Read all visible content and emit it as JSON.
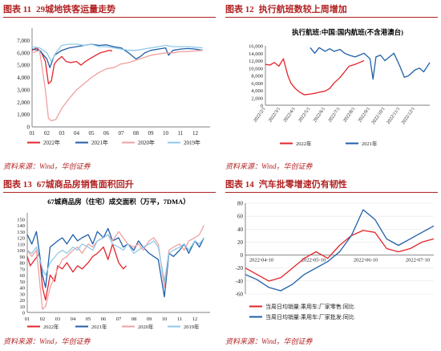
{
  "panels": [
    {
      "id": "p1",
      "label": "图表 11",
      "title": "29城地铁客运量走势",
      "source": "资料来源：Wind，华创证券"
    },
    {
      "id": "p2",
      "label": "图表 12",
      "title": "执行航班数较上周增加",
      "source": "资料来源：Wind，华创证券"
    },
    {
      "id": "p3",
      "label": "图表 13",
      "title": "67城商品房销售面积回升",
      "source": "资料来源：Wind，华创证券"
    },
    {
      "id": "p4",
      "label": "图表 14",
      "title": "汽车批零增速仍有韧性",
      "source": "资料来源：Wind，华创证券"
    }
  ],
  "colors": {
    "red": "#e3242b",
    "blue": "#1f5fa8",
    "pink": "#f0a0a0",
    "lightblue": "#8fc8e8",
    "accent": "#b22222"
  },
  "chart_data": [
    {
      "type": "line",
      "title": "",
      "ylim": [
        0,
        8000
      ],
      "yticks": [
        0,
        1000,
        2000,
        3000,
        4000,
        5000,
        6000,
        7000
      ],
      "yticklabels": [
        "0",
        "1,000",
        "2,000",
        "3,000",
        "4,000",
        "5,000",
        "6,000",
        "7,000"
      ],
      "xlim": [
        1,
        13
      ],
      "xticks": [
        1,
        2,
        3,
        4,
        5,
        6,
        7,
        8,
        9,
        10,
        11,
        12
      ],
      "xticklabels": [
        "01",
        "02",
        "03",
        "04",
        "05",
        "06",
        "07",
        "08",
        "09",
        "10",
        "11",
        "12"
      ],
      "series": [
        {
          "name": "2022年",
          "color": "#e3242b",
          "x": [
            1,
            1.3,
            1.6,
            1.9,
            2.1,
            2.3,
            2.5,
            2.7,
            3,
            3.3,
            3.6,
            4,
            4.3,
            4.6,
            5,
            5.3,
            5.6,
            5.9,
            6.2,
            6.4
          ],
          "y": [
            6200,
            6400,
            6100,
            5300,
            3500,
            3700,
            5100,
            5400,
            5700,
            5300,
            5200,
            5300,
            5000,
            5300,
            5600,
            5800,
            6000,
            6100,
            6200,
            6150
          ]
        },
        {
          "name": "2021年",
          "color": "#1f5fa8",
          "x": [
            1,
            1.5,
            2,
            2.2,
            2.5,
            3,
            3.5,
            4,
            4.5,
            5,
            5.5,
            6,
            6.5,
            7,
            7.5,
            8,
            8.3,
            8.6,
            9,
            9.5,
            10,
            10.2,
            10.5,
            11,
            11.5,
            12,
            12.5
          ],
          "y": [
            6300,
            6200,
            5500,
            4800,
            5800,
            6200,
            6400,
            6500,
            6600,
            6700,
            6600,
            6650,
            6500,
            6400,
            6000,
            5500,
            5700,
            6000,
            6200,
            6300,
            6400,
            5800,
            6200,
            6300,
            6350,
            6300,
            6200
          ]
        },
        {
          "name": "2020年",
          "color": "#f0a0a0",
          "x": [
            1,
            1.5,
            1.9,
            2.1,
            2.3,
            2.6,
            3,
            3.5,
            4,
            4.5,
            5,
            5.5,
            6,
            6.5,
            7,
            7.5,
            8,
            8.5,
            9,
            9.5,
            10,
            10.5,
            11,
            11.5,
            12,
            12.5
          ],
          "y": [
            6000,
            6200,
            3000,
            700,
            500,
            600,
            1500,
            2300,
            3000,
            3500,
            4000,
            4400,
            4700,
            4800,
            5100,
            5200,
            5400,
            5600,
            5800,
            5900,
            6000,
            6000,
            6100,
            6100,
            6150,
            6200
          ]
        },
        {
          "name": "2019年",
          "color": "#8fc8e8",
          "x": [
            1,
            1.5,
            2,
            2.3,
            2.6,
            3,
            3.5,
            4,
            4.5,
            5,
            5.5,
            6,
            6.5,
            7,
            7.5,
            8,
            8.5,
            9,
            9.5,
            10,
            10.5,
            11,
            11.5,
            12,
            12.5
          ],
          "y": [
            6500,
            6400,
            6000,
            5300,
            6000,
            6600,
            6700,
            6700,
            6600,
            6700,
            6500,
            6500,
            6400,
            6300,
            6200,
            6200,
            6300,
            6400,
            6500,
            6600,
            6500,
            6500,
            6500,
            6450,
            6400
          ]
        }
      ],
      "legend": {
        "placement": "bottom"
      }
    },
    {
      "type": "line",
      "title": "执行航班:中国:国内航班(不含港澳台)",
      "ylim": [
        0,
        16000
      ],
      "yticks": [
        0,
        2000,
        4000,
        6000,
        8000,
        10000,
        12000,
        14000,
        16000
      ],
      "yticklabels": [
        "0",
        "2,000",
        "4,000",
        "6,000",
        "8,000",
        "10,000",
        "12,000",
        "14,000",
        "16,000"
      ],
      "xticklabels": [
        "2022/2/1",
        "2022/3/1",
        "2022/4/1",
        "2022/5/1",
        "2022/6/1",
        "2022/7/1",
        "2022/8/1",
        "2022/9/1",
        "2022/10/1",
        "2022/11/1",
        "2022/12/1"
      ],
      "series": [
        {
          "name": "2022年",
          "color": "#e3242b",
          "x": [
            0,
            0.3,
            0.6,
            0.9,
            1.2,
            1.5,
            1.7,
            2,
            2.3,
            2.6,
            3,
            3.3,
            3.6,
            4,
            4.3,
            4.6,
            5,
            5.3,
            5.6,
            6,
            6.3,
            6.6
          ],
          "y": [
            11000,
            10800,
            11500,
            10500,
            12500,
            8000,
            6000,
            4500,
            3500,
            2800,
            3000,
            3200,
            3500,
            3800,
            4500,
            6000,
            7500,
            9000,
            10500,
            11000,
            11500,
            12000
          ]
        },
        {
          "name": "2021年",
          "color": "#1f5fa8",
          "x": [
            3,
            3.3,
            3.6,
            4,
            4.3,
            4.6,
            5,
            5.3,
            5.6,
            6,
            6.3,
            6.6,
            7,
            7.2,
            7.4,
            7.7,
            8,
            8.3,
            8.6,
            9,
            9.3,
            9.6,
            10,
            10.3,
            10.6,
            11
          ],
          "y": [
            15500,
            14000,
            15500,
            14500,
            15200,
            14500,
            15000,
            14000,
            13500,
            13000,
            13500,
            14000,
            12500,
            7000,
            13000,
            13500,
            12000,
            13000,
            14000,
            10500,
            7500,
            8000,
            9500,
            10000,
            9000,
            11500
          ]
        }
      ],
      "legend": {
        "placement": "bottom"
      }
    },
    {
      "type": "line",
      "title": "67城商品房（住宅）成交面积（万平，7DMA）",
      "ylim": [
        0,
        160
      ],
      "yticks": [
        0,
        10,
        20,
        30,
        40,
        50,
        60,
        70,
        80,
        90,
        100,
        110,
        120,
        130,
        140,
        150
      ],
      "yticklabels": [
        "0",
        "10",
        "20",
        "30",
        "40",
        "50",
        "60",
        "70",
        "80",
        "90",
        "100",
        "110",
        "120",
        "130",
        "140",
        "150"
      ],
      "xticks": [
        1,
        2,
        3,
        4,
        5,
        6,
        7,
        8,
        9,
        10,
        11,
        12
      ],
      "xticklabels": [
        "01",
        "02",
        "03",
        "04",
        "05",
        "06",
        "07",
        "08",
        "09",
        "10",
        "11",
        "12"
      ],
      "series": [
        {
          "name": "2022年",
          "color": "#e3242b",
          "x": [
            1,
            1.2,
            1.5,
            1.8,
            2,
            2.2,
            2.5,
            2.8,
            3,
            3.3,
            3.6,
            4,
            4.3,
            4.6,
            5,
            5.3,
            5.6,
            6,
            6.3,
            6.6,
            7,
            7.3,
            7.5
          ],
          "y": [
            90,
            75,
            85,
            95,
            40,
            20,
            60,
            50,
            75,
            70,
            80,
            65,
            75,
            70,
            80,
            90,
            95,
            105,
            85,
            110,
            80,
            70,
            75
          ]
        },
        {
          "name": "2021年",
          "color": "#1f5fa8",
          "x": [
            1,
            1.3,
            1.6,
            2,
            2.2,
            2.5,
            3,
            3.3,
            3.6,
            4,
            4.3,
            4.6,
            5,
            5.3,
            5.6,
            6,
            6.3,
            6.6,
            7,
            7.3,
            7.6,
            8,
            8.3,
            8.6,
            9,
            9.3,
            9.6,
            10,
            10.3,
            10.6,
            11,
            11.3,
            11.6,
            12,
            12.3,
            12.6
          ],
          "y": [
            125,
            110,
            130,
            60,
            40,
            105,
            115,
            120,
            110,
            125,
            115,
            120,
            125,
            110,
            130,
            120,
            135,
            115,
            120,
            105,
            110,
            100,
            115,
            105,
            95,
            90,
            85,
            25,
            95,
            90,
            100,
            110,
            95,
            115,
            105,
            120
          ]
        },
        {
          "name": "2020年",
          "color": "#f0a0a0",
          "x": [
            1,
            1.3,
            1.6,
            2,
            2.2,
            2.5,
            3,
            3.3,
            3.6,
            4,
            4.3,
            4.6,
            5,
            5.3,
            5.6,
            6,
            6.3,
            6.6,
            7,
            7.3,
            7.6,
            8,
            8.3,
            8.6,
            9,
            9.3,
            9.6,
            10,
            10.3,
            10.6,
            11,
            11.3,
            11.6,
            12,
            12.3,
            12.6
          ],
          "y": [
            100,
            90,
            100,
            5,
            10,
            40,
            70,
            85,
            90,
            100,
            105,
            95,
            110,
            105,
            115,
            120,
            125,
            115,
            130,
            120,
            110,
            105,
            110,
            100,
            115,
            120,
            110,
            40,
            100,
            105,
            110,
            100,
            115,
            120,
            125,
            140
          ]
        },
        {
          "name": "2019年",
          "color": "#8fc8e8",
          "x": [
            1,
            1.3,
            1.6,
            2,
            2.2,
            2.5,
            3,
            3.3,
            3.6,
            4,
            4.3,
            4.6,
            5,
            5.3,
            5.6,
            6,
            6.3,
            6.6,
            7,
            7.3,
            7.6,
            8,
            8.3,
            8.6,
            9,
            9.3,
            9.6,
            10,
            10.3,
            10.6,
            11,
            11.3,
            11.6,
            12,
            12.3,
            12.6
          ],
          "y": [
            100,
            95,
            105,
            70,
            60,
            80,
            95,
            100,
            95,
            105,
            100,
            110,
            105,
            100,
            115,
            120,
            125,
            110,
            105,
            100,
            110,
            95,
            100,
            105,
            110,
            115,
            105,
            50,
            95,
            100,
            105,
            110,
            100,
            115,
            110,
            120
          ]
        }
      ],
      "legend": {
        "placement": "bottom"
      }
    },
    {
      "type": "line",
      "title": "",
      "ylim": [
        -60,
        80
      ],
      "yticks": [
        -60,
        -40,
        -20,
        0,
        20,
        40,
        60,
        80
      ],
      "yticklabels": [
        "-60",
        "-40",
        "-20",
        "0",
        "20",
        "40",
        "60",
        "80"
      ],
      "xticklabels": [
        "2022-04-10",
        "2022-05-10",
        "2022-06-10",
        "2022-07-10"
      ],
      "series": [
        {
          "name": "当周日均销量:乘用车:厂家零售:同比",
          "color": "#e3242b",
          "x": [
            0,
            0.2,
            0.4,
            0.6,
            0.8,
            1.0,
            1.2,
            1.4,
            1.6,
            1.8,
            2.0,
            2.2,
            2.4,
            2.6,
            2.8,
            3.0,
            3.2
          ],
          "y": [
            -20,
            -30,
            -40,
            -35,
            -20,
            -5,
            5,
            -5,
            15,
            30,
            38,
            35,
            10,
            5,
            10,
            20,
            25
          ]
        },
        {
          "name": "当周日均销量:乘用车:厂家批发:同比",
          "color": "#1f5fa8",
          "x": [
            0,
            0.2,
            0.4,
            0.6,
            0.8,
            1.0,
            1.2,
            1.4,
            1.6,
            1.8,
            2.0,
            2.2,
            2.4,
            2.6,
            2.8,
            3.0,
            3.2
          ],
          "y": [
            -30,
            -38,
            -50,
            -55,
            -45,
            -30,
            -20,
            -10,
            5,
            30,
            70,
            55,
            25,
            15,
            25,
            35,
            45
          ]
        }
      ],
      "legend": {
        "placement": "bottom"
      }
    }
  ]
}
